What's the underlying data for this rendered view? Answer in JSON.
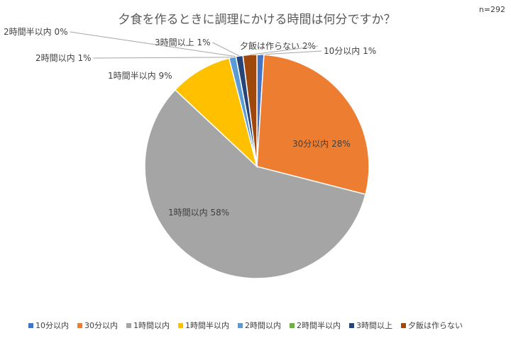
{
  "chart_data": {
    "type": "pie",
    "title": "夕食を作るときに調理にかける時間は何分ですか？",
    "note": "n=292",
    "categories": [
      "10分以内",
      "30分以内",
      "1時間以内",
      "1時間半以内",
      "2時間以内",
      "2時間半以内",
      "3時間以上",
      "夕飯は作らない"
    ],
    "values": [
      1,
      28,
      58,
      9,
      1,
      0,
      1,
      2
    ],
    "value_labels": [
      "1%",
      "28%",
      "58%",
      "9%",
      "1%",
      "0%",
      "1%",
      "2%"
    ],
    "colors": [
      "#4472c4",
      "#ed7d31",
      "#a5a5a5",
      "#ffc000",
      "#5b9bd5",
      "#70ad47",
      "#264478",
      "#9e480e"
    ],
    "legend": "bottom"
  }
}
